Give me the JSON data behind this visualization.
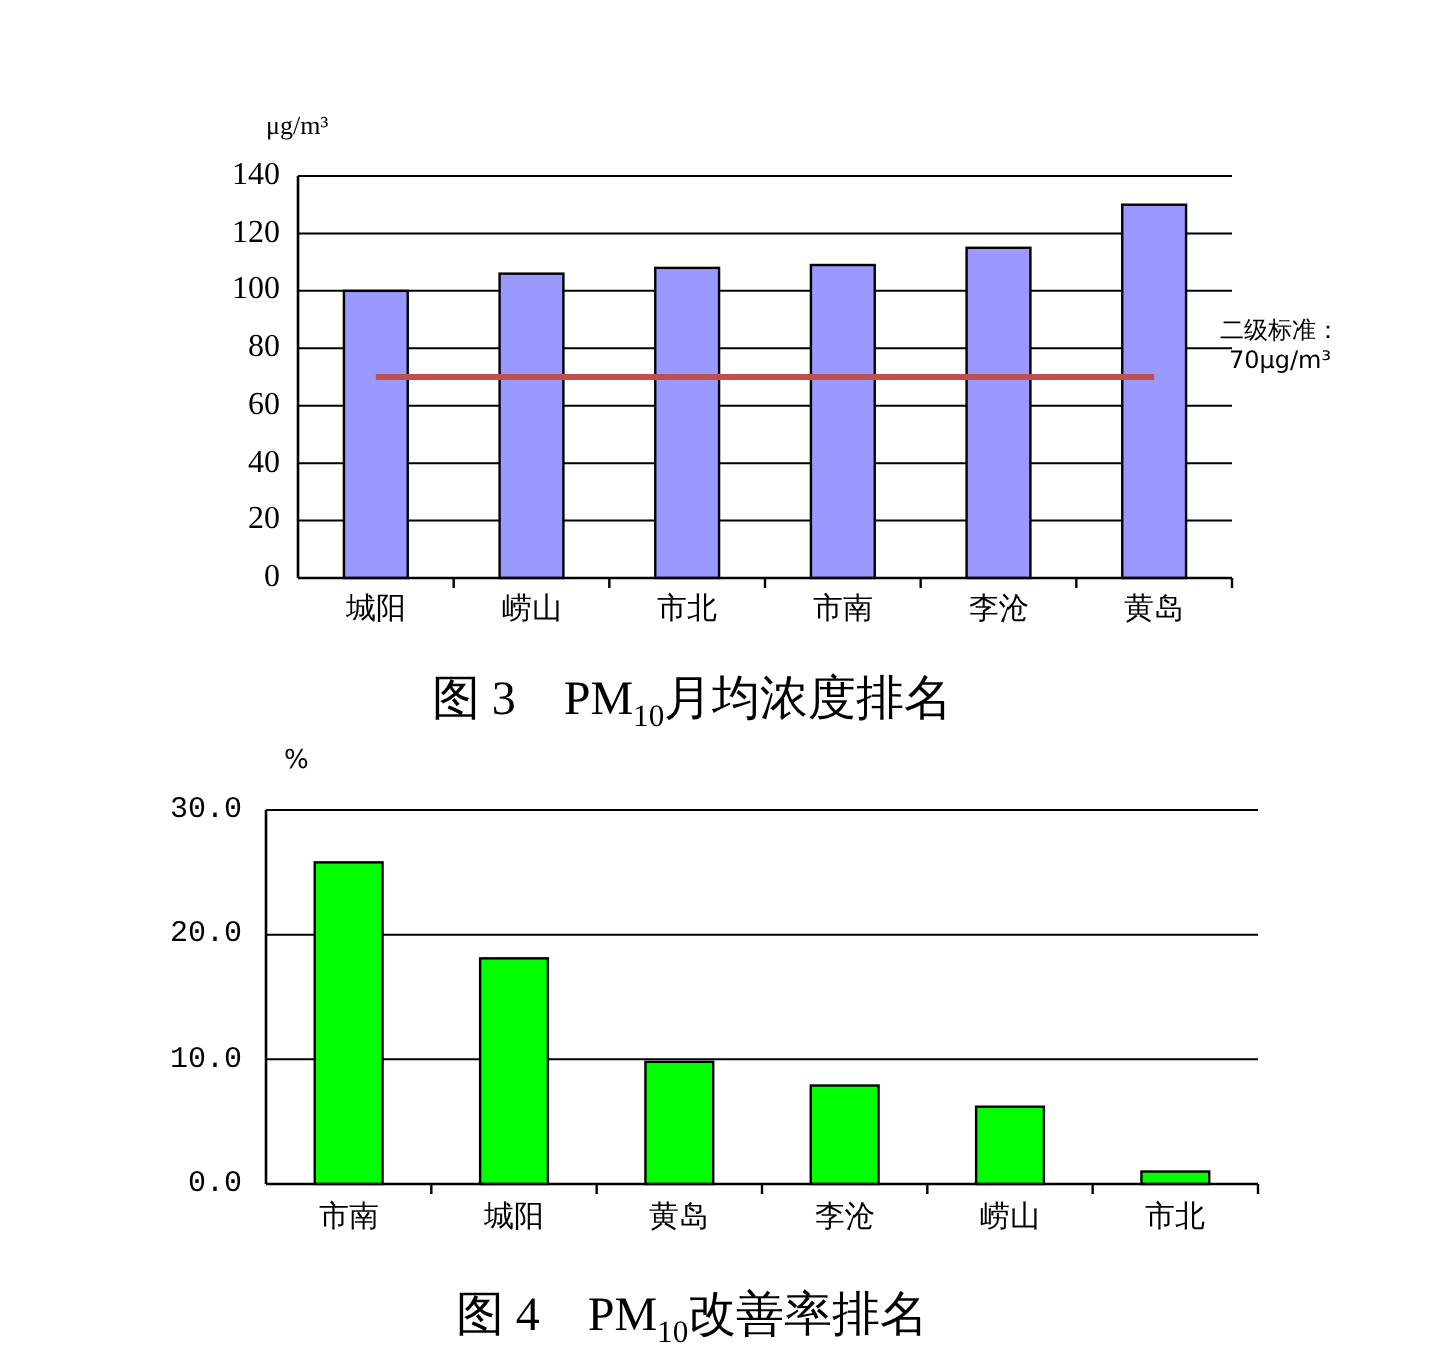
{
  "chart_data": [
    {
      "type": "bar",
      "title": "图 3    PM$_{10}$月均浓度排名",
      "ylabel": "μg/m³",
      "categories": [
        "城阳",
        "崂山",
        "市北",
        "市南",
        "李沧",
        "黄岛"
      ],
      "values": [
        100,
        106,
        108,
        109,
        115,
        130
      ],
      "color": "#9999ff",
      "ylim": [
        0,
        140
      ],
      "yticks": [
        0,
        20,
        40,
        60,
        80,
        100,
        120,
        140
      ],
      "grid": "y",
      "ref_lines": [
        {
          "axis": "y",
          "value": 70,
          "label": "二级标准：70μg/m³",
          "color": "#c0504d"
        }
      ]
    },
    {
      "type": "bar",
      "title": "图 4    PM$_{10}$改善率排名",
      "ylabel": "%",
      "categories": [
        "市南",
        "城阳",
        "黄岛",
        "李沧",
        "崂山",
        "市北"
      ],
      "values": [
        25.8,
        18.1,
        9.8,
        7.9,
        6.2,
        1.0
      ],
      "color": "#00ff00",
      "ylim": [
        0,
        30
      ],
      "yticks": [
        {
          "value": 0,
          "label": "0.0"
        },
        {
          "value": 10,
          "label": "10.0"
        },
        {
          "value": 20,
          "label": "20.0"
        },
        {
          "value": 30,
          "label": "30.0"
        }
      ],
      "grid": "y"
    }
  ]
}
